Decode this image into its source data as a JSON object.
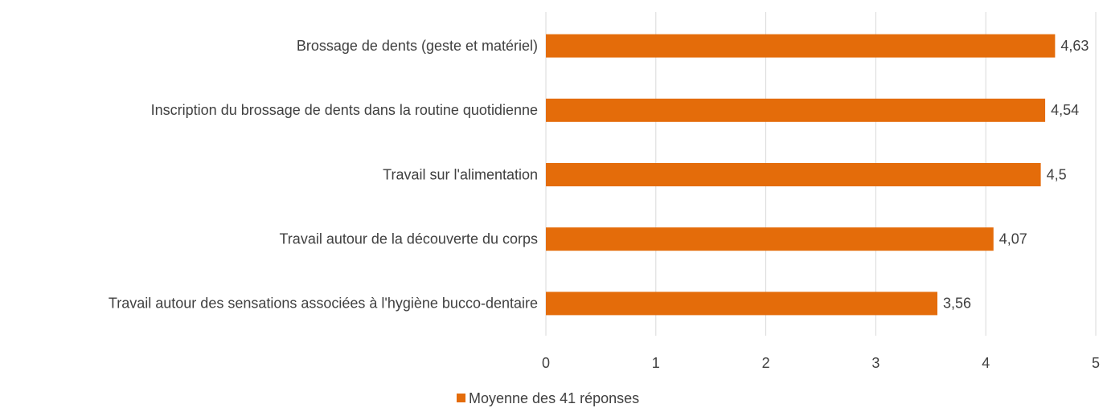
{
  "chart_data": {
    "type": "barh",
    "categories": [
      "Brossage de dents (geste et matériel)",
      "Inscription du brossage de dents dans la routine quotidienne",
      "Travail sur l'alimentation",
      "Travail autour de la découverte du corps",
      "Travail autour des sensations associées à l'hygiène bucco-dentaire"
    ],
    "series": [
      {
        "name": "Moyenne des 41 réponses",
        "color": "#e46c0a",
        "values": [
          4.63,
          4.54,
          4.5,
          4.07,
          3.56
        ],
        "value_labels": [
          "4,63",
          "4,54",
          "4,5",
          "4,07",
          "3,56"
        ]
      }
    ],
    "xlim": [
      0,
      5
    ],
    "xticks": [
      0,
      1,
      2,
      3,
      4,
      5
    ],
    "grid": true,
    "legend": "bottom"
  }
}
